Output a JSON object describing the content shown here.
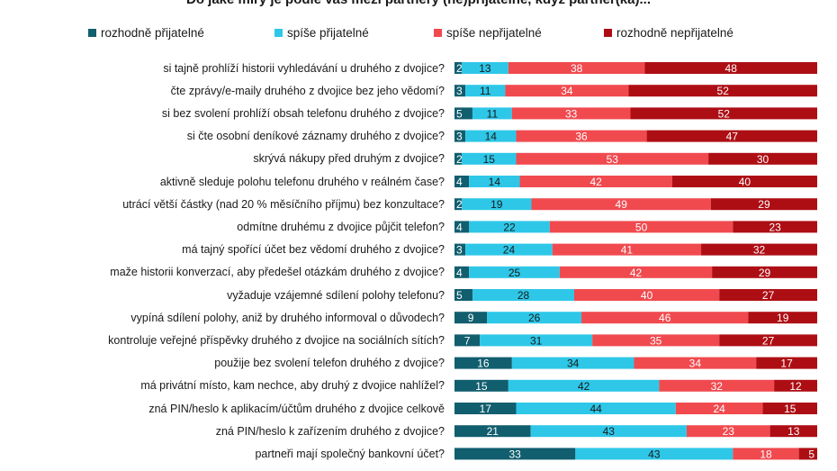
{
  "chart_data": {
    "type": "bar",
    "stacked": true,
    "orientation": "horizontal",
    "title": "Do jaké míry je podle vás mezi partnery (ne)přijatelné, když partner(ka)...",
    "legend_position": "top",
    "series": [
      {
        "name": "rozhodně přijatelné",
        "color": "#115e6e",
        "label_color": "#ffffff",
        "values": [
          2,
          3,
          5,
          3,
          2,
          4,
          2,
          4,
          3,
          4,
          5,
          9,
          7,
          16,
          15,
          17,
          21,
          33
        ]
      },
      {
        "name": "spíše přijatelné",
        "color": "#2ec7e8",
        "label_color": "#1a1a1a",
        "values": [
          13,
          11,
          11,
          14,
          15,
          14,
          19,
          22,
          24,
          25,
          28,
          26,
          31,
          34,
          42,
          44,
          43,
          43
        ]
      },
      {
        "name": "spíše nepřijatelné",
        "color": "#f04a4f",
        "label_color": "#ffffff",
        "values": [
          38,
          34,
          33,
          36,
          53,
          42,
          49,
          50,
          41,
          42,
          40,
          46,
          35,
          34,
          32,
          24,
          23,
          18
        ]
      },
      {
        "name": "rozhodně nepřijatelné",
        "color": "#ad0e14",
        "label_color": "#ffffff",
        "values": [
          48,
          52,
          52,
          47,
          30,
          40,
          29,
          23,
          32,
          29,
          27,
          19,
          27,
          17,
          12,
          15,
          13,
          5
        ]
      }
    ],
    "categories": [
      "si tajně prohlíží historii vyhledávání u druhého z dvojice?",
      "čte zprávy/e-maily druhého z dvojice bez jeho vědomí?",
      "si bez svolení prohlíží obsah telefonu druhého z dvojice?",
      "si čte osobní deníkové záznamy druhého z dvojice?",
      "skrývá nákupy před druhým z dvojice?",
      "aktivně sleduje polohu telefonu druhého v reálném čase?",
      "utrácí větší částky (nad 20 % měsíčního příjmu) bez konzultace?",
      "odmítne druhému z dvojice půjčit telefon?",
      "má tajný spořící účet bez vědomí druhého z dvojice?",
      "maže historii konverzací, aby předešel otázkám druhého z dvojice?",
      "vyžaduje vzájemné sdílení polohy telefonu?",
      "vypíná sdílení polohy, aniž by druhého informoval o důvodech?",
      "kontroluje veřejné příspěvky druhého z dvojice na sociálních sítích?",
      "použije bez svolení telefon druhého z dvojice?",
      "má privátní místo, kam nechce, aby druhý z dvojice nahlížel?",
      "zná PIN/heslo k aplikacím/účtům druhého z dvojice celkově",
      "zná PIN/heslo k zařízením druhého z dvojice?",
      "partneři mají společný bankovní účet?"
    ]
  }
}
